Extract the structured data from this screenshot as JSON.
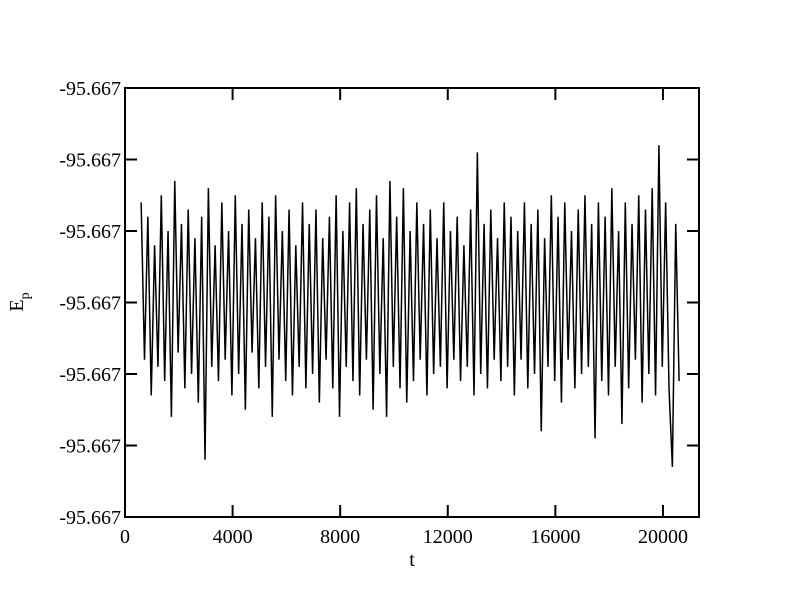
{
  "chart_data": {
    "type": "line",
    "x_label": "t",
    "y_label": "E",
    "y_label_sub": "p",
    "xlim": [
      0,
      21340
    ],
    "xticks": [
      0,
      4000,
      8000,
      12000,
      16000,
      20000
    ],
    "ylim": [
      -95.6673,
      -95.6667
    ],
    "yticks": [
      {
        "value": -95.6673,
        "label": "-95.667"
      },
      {
        "value": -95.6672,
        "label": "-95.667"
      },
      {
        "value": -95.6671,
        "label": "-95.667"
      },
      {
        "value": -95.667,
        "label": "-95.667"
      },
      {
        "value": -95.6669,
        "label": "-95.667"
      },
      {
        "value": -95.6668,
        "label": "-95.667"
      },
      {
        "value": -95.6667,
        "label": "-95.667"
      }
    ],
    "series": [
      {
        "color": "#000000",
        "x": [
          600,
          725,
          850,
          975,
          1100,
          1225,
          1350,
          1475,
          1600,
          1725,
          1850,
          1975,
          2100,
          2225,
          2350,
          2475,
          2600,
          2725,
          2850,
          2975,
          3100,
          3225,
          3350,
          3475,
          3600,
          3725,
          3850,
          3975,
          4100,
          4225,
          4350,
          4475,
          4600,
          4725,
          4850,
          4975,
          5100,
          5225,
          5350,
          5475,
          5600,
          5725,
          5850,
          5975,
          6100,
          6225,
          6350,
          6475,
          6600,
          6725,
          6850,
          6975,
          7100,
          7225,
          7350,
          7475,
          7600,
          7725,
          7850,
          7975,
          8100,
          8225,
          8350,
          8475,
          8600,
          8725,
          8850,
          8975,
          9100,
          9225,
          9350,
          9475,
          9600,
          9725,
          9850,
          9975,
          10100,
          10225,
          10350,
          10475,
          10600,
          10725,
          10850,
          10975,
          11100,
          11225,
          11350,
          11475,
          11600,
          11725,
          11850,
          11975,
          12100,
          12225,
          12350,
          12475,
          12600,
          12725,
          12850,
          12975,
          13100,
          13225,
          13350,
          13475,
          13600,
          13725,
          13850,
          13975,
          14100,
          14225,
          14350,
          14475,
          14600,
          14725,
          14850,
          14975,
          15100,
          15225,
          15350,
          15475,
          15600,
          15725,
          15850,
          15975,
          16100,
          16225,
          16350,
          16475,
          16600,
          16725,
          16850,
          16975,
          17100,
          17225,
          17350,
          17475,
          17600,
          17725,
          17850,
          17975,
          18100,
          18225,
          18350,
          18475,
          18600,
          18725,
          18850,
          18975,
          19100,
          19225,
          19350,
          19475,
          19600,
          19725,
          19850,
          19975,
          20100,
          20225,
          20350,
          20475,
          20600
        ],
        "values": [
          -95.66686,
          -95.66708,
          -95.66688,
          -95.66713,
          -95.66692,
          -95.66709,
          -95.66685,
          -95.66711,
          -95.6669,
          -95.66716,
          -95.66683,
          -95.66707,
          -95.66689,
          -95.66712,
          -95.66687,
          -95.6671,
          -95.66691,
          -95.66714,
          -95.66688,
          -95.66722,
          -95.66684,
          -95.66709,
          -95.66692,
          -95.66711,
          -95.66686,
          -95.66708,
          -95.6669,
          -95.66713,
          -95.66685,
          -95.6671,
          -95.66689,
          -95.66715,
          -95.66687,
          -95.66707,
          -95.66691,
          -95.66712,
          -95.66686,
          -95.66709,
          -95.66688,
          -95.66716,
          -95.66685,
          -95.66708,
          -95.6669,
          -95.66711,
          -95.66687,
          -95.66713,
          -95.66692,
          -95.66709,
          -95.66686,
          -95.66712,
          -95.66689,
          -95.6671,
          -95.66687,
          -95.66714,
          -95.66691,
          -95.66708,
          -95.66688,
          -95.66712,
          -95.66685,
          -95.66716,
          -95.6669,
          -95.66709,
          -95.66686,
          -95.66711,
          -95.66684,
          -95.66713,
          -95.66689,
          -95.66708,
          -95.66687,
          -95.66715,
          -95.66685,
          -95.6671,
          -95.66691,
          -95.66716,
          -95.66683,
          -95.66709,
          -95.66688,
          -95.66712,
          -95.66684,
          -95.66714,
          -95.6669,
          -95.66711,
          -95.66686,
          -95.66708,
          -95.66689,
          -95.66713,
          -95.66687,
          -95.6671,
          -95.66691,
          -95.66709,
          -95.66686,
          -95.66712,
          -95.6669,
          -95.66708,
          -95.66688,
          -95.66711,
          -95.66692,
          -95.66709,
          -95.66687,
          -95.66713,
          -95.66679,
          -95.6671,
          -95.66689,
          -95.66712,
          -95.66687,
          -95.66708,
          -95.66691,
          -95.66711,
          -95.66686,
          -95.66709,
          -95.66688,
          -95.66713,
          -95.6669,
          -95.66708,
          -95.66686,
          -95.66712,
          -95.66689,
          -95.6671,
          -95.66687,
          -95.66718,
          -95.66691,
          -95.66709,
          -95.66685,
          -95.66711,
          -95.66688,
          -95.66714,
          -95.66686,
          -95.66708,
          -95.6669,
          -95.66712,
          -95.66687,
          -95.6671,
          -95.66685,
          -95.66709,
          -95.66689,
          -95.66719,
          -95.66686,
          -95.66711,
          -95.66688,
          -95.66713,
          -95.66684,
          -95.66709,
          -95.6669,
          -95.66717,
          -95.66686,
          -95.66712,
          -95.66689,
          -95.66708,
          -95.66685,
          -95.66714,
          -95.66687,
          -95.6671,
          -95.66684,
          -95.66713,
          -95.66678,
          -95.66709,
          -95.66686,
          -95.66712,
          -95.66723,
          -95.66689,
          -95.66711
        ]
      }
    ]
  }
}
